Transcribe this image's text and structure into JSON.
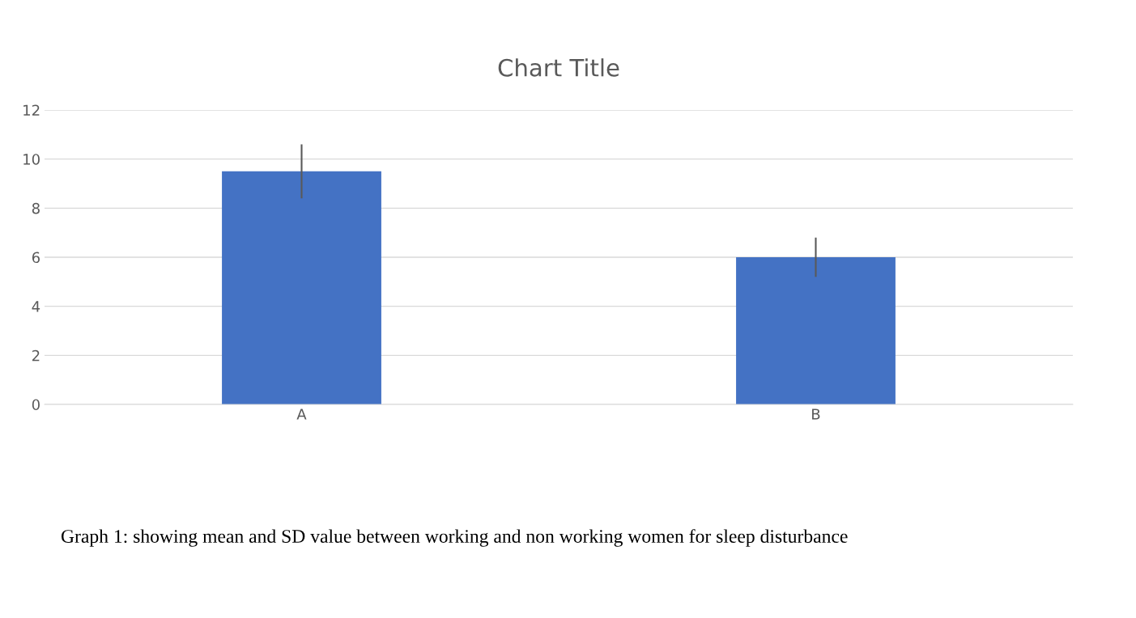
{
  "chart_data": {
    "type": "bar",
    "title": "Chart Title",
    "categories": [
      "A",
      "B"
    ],
    "values": [
      9.5,
      6.0
    ],
    "errors": [
      1.1,
      0.8
    ],
    "color": "#4472c4",
    "ylim": [
      0,
      12
    ],
    "yticks": [
      0,
      2,
      4,
      6,
      8,
      10,
      12
    ],
    "grid": "y",
    "annotations": [
      "Graph 1: showing mean and SD value between working and non working women for sleep disturbance"
    ]
  }
}
